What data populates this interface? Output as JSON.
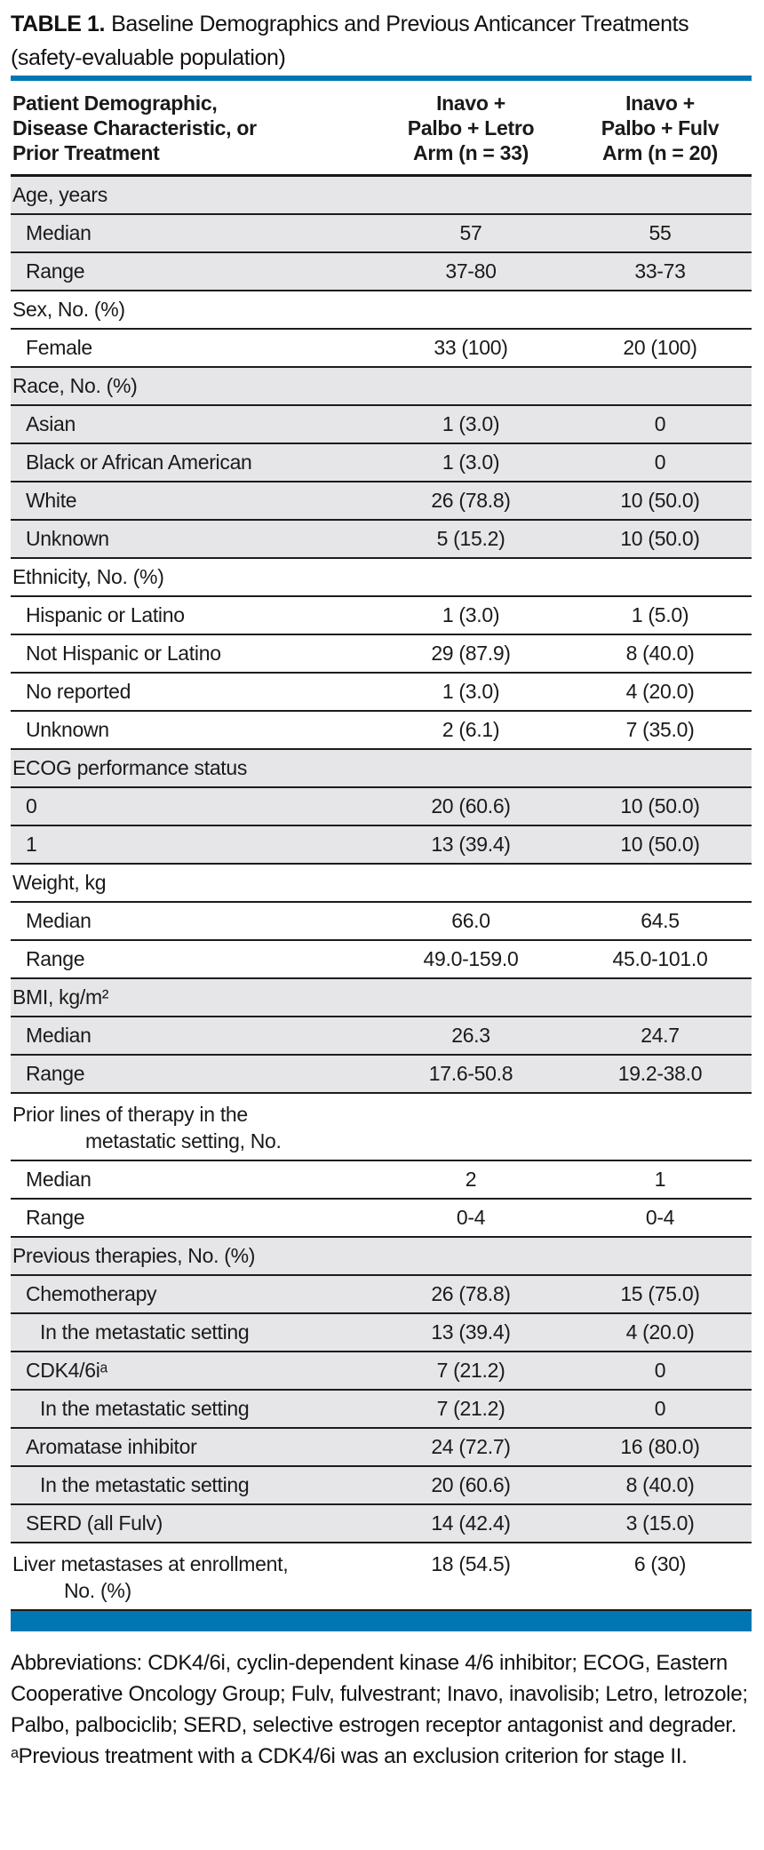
{
  "title": {
    "label": "TABLE 1.",
    "text": "Baseline Demographics and Previous Anticancer Treatments (safety-evaluable population)"
  },
  "table": {
    "header": {
      "col1_lines": [
        "Patient Demographic,",
        "Disease Characteristic, or",
        "Prior Treatment"
      ],
      "col2_lines": [
        "Inavo +",
        "Palbo + Letro",
        "Arm (n = 33)"
      ],
      "col3_lines": [
        "Inavo +",
        "Palbo + Fulv",
        "Arm (n = 20)"
      ]
    },
    "rows": [
      {
        "section": true,
        "shade": true,
        "indent": 0,
        "label": "Age, years",
        "c2": "",
        "c3": ""
      },
      {
        "section": false,
        "shade": true,
        "indent": 1,
        "label": "Median",
        "c2": "57",
        "c3": "55"
      },
      {
        "section": false,
        "shade": true,
        "indent": 1,
        "label": "Range",
        "c2": "37-80",
        "c3": "33-73"
      },
      {
        "section": true,
        "shade": false,
        "indent": 0,
        "label": "Sex, No. (%)",
        "c2": "",
        "c3": ""
      },
      {
        "section": false,
        "shade": false,
        "indent": 1,
        "label": "Female",
        "c2": "33 (100)",
        "c3": "20 (100)"
      },
      {
        "section": true,
        "shade": true,
        "indent": 0,
        "label": "Race, No. (%)",
        "c2": "",
        "c3": ""
      },
      {
        "section": false,
        "shade": true,
        "indent": 1,
        "label": "Asian",
        "c2": "1 (3.0)",
        "c3": "0"
      },
      {
        "section": false,
        "shade": true,
        "indent": 1,
        "label": "Black or African American",
        "c2": "1 (3.0)",
        "c3": "0"
      },
      {
        "section": false,
        "shade": true,
        "indent": 1,
        "label": "White",
        "c2": "26 (78.8)",
        "c3": "10 (50.0)"
      },
      {
        "section": false,
        "shade": true,
        "indent": 1,
        "label": "Unknown",
        "c2": "5 (15.2)",
        "c3": "10 (50.0)"
      },
      {
        "section": true,
        "shade": false,
        "indent": 0,
        "label": "Ethnicity, No. (%)",
        "c2": "",
        "c3": ""
      },
      {
        "section": false,
        "shade": false,
        "indent": 1,
        "label": "Hispanic or Latino",
        "c2": "1 (3.0)",
        "c3": "1 (5.0)"
      },
      {
        "section": false,
        "shade": false,
        "indent": 1,
        "label": "Not Hispanic or Latino",
        "c2": "29 (87.9)",
        "c3": "8 (40.0)"
      },
      {
        "section": false,
        "shade": false,
        "indent": 1,
        "label": "No reported",
        "c2": "1 (3.0)",
        "c3": "4 (20.0)"
      },
      {
        "section": false,
        "shade": false,
        "indent": 1,
        "label": "Unknown",
        "c2": "2 (6.1)",
        "c3": "7 (35.0)"
      },
      {
        "section": true,
        "shade": true,
        "indent": 0,
        "label": "ECOG performance status",
        "c2": "",
        "c3": ""
      },
      {
        "section": false,
        "shade": true,
        "indent": 1,
        "label": "0",
        "c2": "20 (60.6)",
        "c3": "10 (50.0)"
      },
      {
        "section": false,
        "shade": true,
        "indent": 1,
        "label": "1",
        "c2": "13 (39.4)",
        "c3": "10 (50.0)"
      },
      {
        "section": true,
        "shade": false,
        "indent": 0,
        "label": "Weight, kg",
        "c2": "",
        "c3": ""
      },
      {
        "section": false,
        "shade": false,
        "indent": 1,
        "label": "Median",
        "c2": "66.0",
        "c3": "64.5"
      },
      {
        "section": false,
        "shade": false,
        "indent": 1,
        "label": "Range",
        "c2": "49.0-159.0",
        "c3": "45.0-101.0"
      },
      {
        "section": true,
        "shade": true,
        "indent": 0,
        "label": "BMI, kg/m²",
        "c2": "",
        "c3": ""
      },
      {
        "section": false,
        "shade": true,
        "indent": 1,
        "label": "Median",
        "c2": "26.3",
        "c3": "24.7"
      },
      {
        "section": false,
        "shade": true,
        "indent": 1,
        "label": "Range",
        "c2": "17.6-50.8",
        "c3": "19.2-38.0"
      },
      {
        "section": true,
        "shade": false,
        "indent": 0,
        "label": "Prior lines of therapy in the",
        "label2": "metastatic setting, No.",
        "c2": "",
        "c3": ""
      },
      {
        "section": false,
        "shade": false,
        "indent": 1,
        "label": "Median",
        "c2": "2",
        "c3": "1"
      },
      {
        "section": false,
        "shade": false,
        "indent": 1,
        "label": "Range",
        "c2": "0-4",
        "c3": "0-4"
      },
      {
        "section": true,
        "shade": true,
        "indent": 0,
        "label": "Previous therapies, No. (%)",
        "c2": "",
        "c3": ""
      },
      {
        "section": false,
        "shade": true,
        "indent": 1,
        "label": "Chemotherapy",
        "c2": "26 (78.8)",
        "c3": "15 (75.0)"
      },
      {
        "section": false,
        "shade": true,
        "indent": 2,
        "label": "In the metastatic setting",
        "c2": "13 (39.4)",
        "c3": "4 (20.0)"
      },
      {
        "section": false,
        "shade": true,
        "indent": 1,
        "label": "CDK4/6iᵃ",
        "c2": "7 (21.2)",
        "c3": "0"
      },
      {
        "section": false,
        "shade": true,
        "indent": 2,
        "label": "In the metastatic setting",
        "c2": "7 (21.2)",
        "c3": "0"
      },
      {
        "section": false,
        "shade": true,
        "indent": 1,
        "label": "Aromatase inhibitor",
        "c2": "24 (72.7)",
        "c3": "16 (80.0)"
      },
      {
        "section": false,
        "shade": true,
        "indent": 2,
        "label": "In the metastatic setting",
        "c2": "20 (60.6)",
        "c3": "8 (40.0)"
      },
      {
        "section": false,
        "shade": true,
        "indent": 1,
        "label": "SERD (all Fulv)",
        "c2": "14 (42.4)",
        "c3": "3 (15.0)"
      },
      {
        "section": false,
        "shade": false,
        "indent": 0,
        "label": "Liver metastases at enrollment,",
        "label2": "No. (%)",
        "c2": "18 (54.5)",
        "c3": "6 (30)"
      }
    ]
  },
  "footnotes": {
    "abbreviations": "Abbreviations: CDK4/6i, cyclin-dependent kinase 4/6 inhibitor; ECOG, Eastern Cooperative Oncology Group; Fulv, fulvestrant; Inavo, inavolisib; Letro, letrozole; Palbo, palbociclib; SERD, selective estrogen receptor antagonist and degrader.",
    "note_a": "ᵃPrevious treatment with a CDK4/6i was an exclusion criterion for stage II."
  },
  "colors": {
    "accent_blue": "#0077B3",
    "row_shade": "#E6E6E8",
    "rule_dark": "#1C1C1C",
    "text": "#1A1A1A"
  }
}
